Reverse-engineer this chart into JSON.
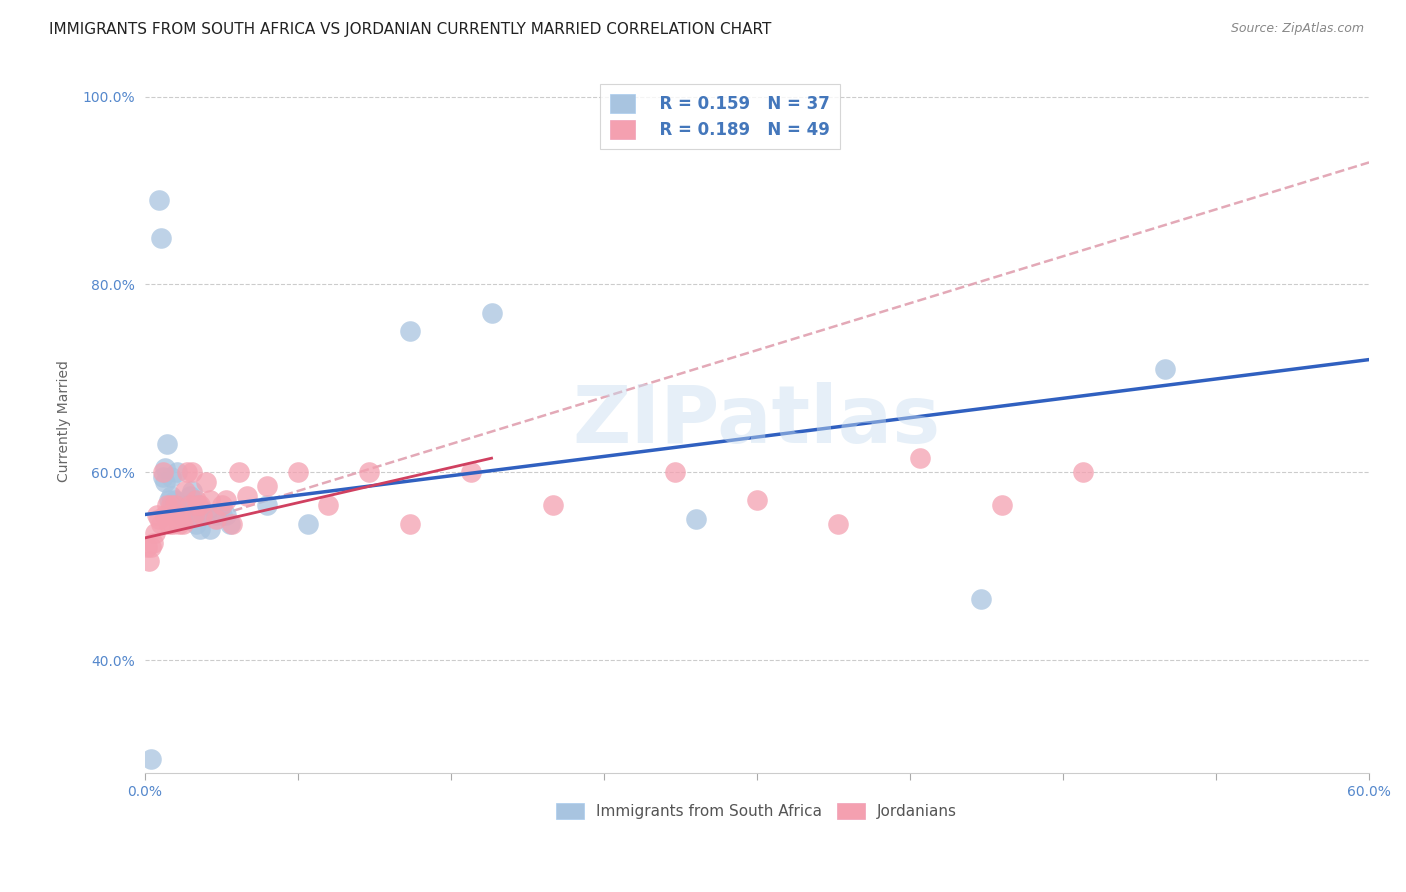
{
  "title": "IMMIGRANTS FROM SOUTH AFRICA VS JORDANIAN CURRENTLY MARRIED CORRELATION CHART",
  "source": "Source: ZipAtlas.com",
  "ylabel": "Currently Married",
  "xlim": [
    0.0,
    0.6
  ],
  "ylim": [
    0.28,
    1.03
  ],
  "xticks": [
    0.0,
    0.075,
    0.15,
    0.225,
    0.3,
    0.375,
    0.45,
    0.525,
    0.6
  ],
  "xticklabels_show": [
    "0.0%",
    "",
    "",
    "",
    "",
    "",
    "",
    "",
    "60.0%"
  ],
  "yticks": [
    0.4,
    0.6,
    0.8,
    1.0
  ],
  "yticklabels": [
    "40.0%",
    "60.0%",
    "80.0%",
    "100.0%"
  ],
  "legend_R1": "R = 0.159",
  "legend_N1": "N = 37",
  "legend_R2": "R = 0.189",
  "legend_N2": "N = 49",
  "label1": "Immigrants from South Africa",
  "label2": "Jordanians",
  "color1": "#a8c4e0",
  "color2": "#f4a0b0",
  "trendline1_color": "#3060c0",
  "trendline2_color": "#d04060",
  "trendline_ext_color": "#e0a0b0",
  "watermark": "ZIPatlas",
  "title_fontsize": 11,
  "axis_label_fontsize": 10,
  "tick_fontsize": 10,
  "blue_x": [
    0.003,
    0.007,
    0.008,
    0.009,
    0.01,
    0.01,
    0.011,
    0.012,
    0.013,
    0.013,
    0.014,
    0.015,
    0.016,
    0.016,
    0.018,
    0.019,
    0.02,
    0.021,
    0.022,
    0.023,
    0.025,
    0.026,
    0.027,
    0.028,
    0.03,
    0.032,
    0.035,
    0.038,
    0.04,
    0.042,
    0.06,
    0.08,
    0.13,
    0.17,
    0.27,
    0.41,
    0.5
  ],
  "blue_y": [
    0.295,
    0.89,
    0.85,
    0.595,
    0.59,
    0.605,
    0.63,
    0.57,
    0.595,
    0.575,
    0.565,
    0.57,
    0.56,
    0.6,
    0.555,
    0.565,
    0.56,
    0.55,
    0.575,
    0.58,
    0.545,
    0.56,
    0.54,
    0.56,
    0.555,
    0.54,
    0.555,
    0.555,
    0.555,
    0.545,
    0.565,
    0.545,
    0.75,
    0.77,
    0.55,
    0.465,
    0.71
  ],
  "pink_x": [
    0.001,
    0.002,
    0.003,
    0.004,
    0.005,
    0.006,
    0.007,
    0.008,
    0.009,
    0.01,
    0.011,
    0.012,
    0.013,
    0.014,
    0.015,
    0.016,
    0.017,
    0.018,
    0.019,
    0.02,
    0.021,
    0.022,
    0.023,
    0.024,
    0.025,
    0.026,
    0.027,
    0.028,
    0.03,
    0.032,
    0.035,
    0.038,
    0.04,
    0.043,
    0.046,
    0.05,
    0.06,
    0.075,
    0.09,
    0.11,
    0.13,
    0.16,
    0.2,
    0.26,
    0.3,
    0.34,
    0.38,
    0.42,
    0.46
  ],
  "pink_y": [
    0.52,
    0.505,
    0.52,
    0.525,
    0.535,
    0.555,
    0.55,
    0.545,
    0.6,
    0.555,
    0.565,
    0.545,
    0.565,
    0.545,
    0.565,
    0.555,
    0.545,
    0.55,
    0.545,
    0.58,
    0.6,
    0.565,
    0.6,
    0.555,
    0.57,
    0.565,
    0.565,
    0.555,
    0.59,
    0.57,
    0.55,
    0.565,
    0.57,
    0.545,
    0.6,
    0.575,
    0.585,
    0.6,
    0.565,
    0.6,
    0.545,
    0.6,
    0.565,
    0.6,
    0.57,
    0.545,
    0.615,
    0.565,
    0.6
  ],
  "trendline1_x0": 0.0,
  "trendline1_x1": 0.6,
  "trendline1_y0": 0.555,
  "trendline1_y1": 0.72,
  "trendline2_x0": 0.0,
  "trendline2_x1": 0.17,
  "trendline2_y0": 0.53,
  "trendline2_y1": 0.615,
  "trendline_ext_x0": 0.0,
  "trendline_ext_x1": 0.6,
  "trendline_ext_y0": 0.53,
  "trendline_ext_y1": 0.93
}
